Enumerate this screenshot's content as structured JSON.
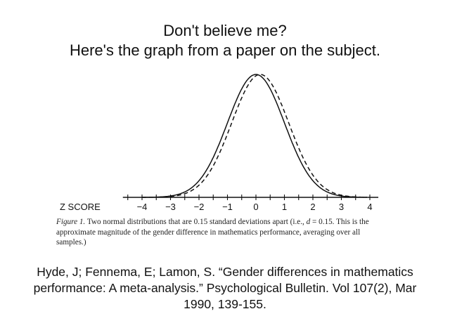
{
  "header": {
    "line1": "Don't believe me?",
    "line2": "Here's the graph from a paper on the subject."
  },
  "chart_data": {
    "type": "line",
    "xlabel": "Z SCORE",
    "x_ticks": [
      "-4",
      "-3",
      "-2",
      "-1",
      "0",
      "1",
      "2",
      "3",
      "4"
    ],
    "xlim": [
      -4.5,
      4.1
    ],
    "series": [
      {
        "style": "solid",
        "distribution": "normal",
        "mean": 0,
        "sd": 1
      },
      {
        "style": "dashed",
        "distribution": "normal",
        "mean": 0.15,
        "sd": 1
      }
    ],
    "line_color": "#111111"
  },
  "caption": {
    "figure_label": "Figure 1.",
    "text_part1": " Two normal distributions that are 0.15 standard deviations apart (i.e., ",
    "d_symbol": "d",
    "text_part2": " = 0.15. This is the approximate magnitude of the gender difference in mathematics performance, averaging over all samples.)"
  },
  "reference": {
    "text": "Hyde, J; Fennema, E; Lamon, S. “Gender differences in mathematics performance: A meta-analysis.” Psychological Bulletin. Vol 107(2), Mar 1990, 139-155."
  }
}
